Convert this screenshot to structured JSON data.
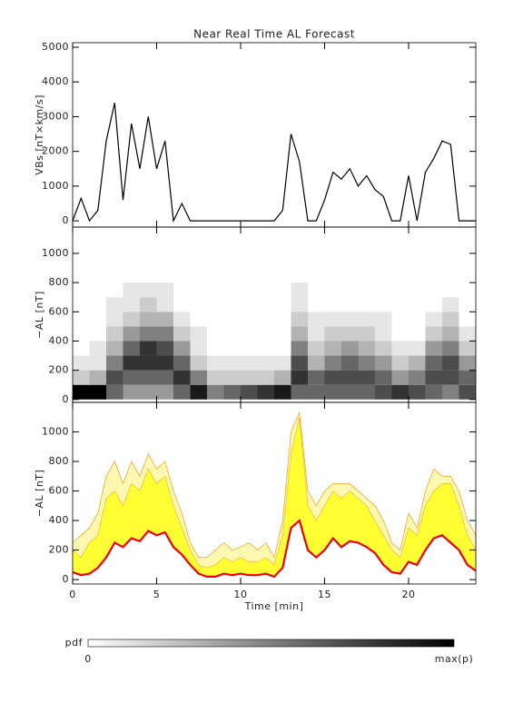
{
  "chart_data": [
    {
      "type": "line",
      "title": "Near Real Time AL Forecast",
      "ylabel": "VBs [nT×km/s]",
      "color": "#000000",
      "x": [
        0,
        0.5,
        1,
        1.5,
        2,
        2.5,
        3,
        3.5,
        4,
        4.5,
        5,
        5.5,
        6,
        6.5,
        7,
        7.5,
        8,
        8.5,
        9,
        9.5,
        10,
        10.5,
        11,
        11.5,
        12,
        12.5,
        13,
        13.5,
        14,
        14.5,
        15,
        15.5,
        16,
        16.5,
        17,
        17.5,
        18,
        18.5,
        19,
        19.5,
        20,
        20.5,
        21,
        21.5,
        22,
        22.5,
        23,
        23.5,
        24
      ],
      "values": [
        0,
        650,
        0,
        300,
        2300,
        3400,
        600,
        2800,
        1500,
        3000,
        1500,
        2300,
        0,
        500,
        0,
        0,
        0,
        0,
        0,
        0,
        0,
        0,
        0,
        0,
        0,
        300,
        2500,
        1700,
        0,
        0,
        600,
        1400,
        1200,
        1500,
        1000,
        1300,
        900,
        700,
        0,
        0,
        1300,
        0,
        1400,
        1800,
        2300,
        2200,
        0,
        0,
        0
      ],
      "xlim": [
        0,
        24
      ],
      "xticks": [
        0,
        5,
        10,
        15,
        20
      ],
      "ylim": [
        -180,
        5130
      ],
      "yticks": [
        0,
        1000,
        2000,
        3000,
        4000,
        5000
      ]
    },
    {
      "type": "heatmap",
      "ylabel": "−AL [nT]",
      "x_bins": [
        0,
        1,
        2,
        3,
        4,
        5,
        6,
        7,
        8,
        9,
        10,
        11,
        12,
        13,
        14,
        15,
        16,
        17,
        18,
        19,
        20,
        21,
        22,
        23,
        24
      ],
      "y_bins": [
        0,
        100,
        200,
        300,
        400,
        500,
        600,
        700,
        800
      ],
      "pdf": [
        [
          1,
          0.2,
          0.1,
          0,
          0,
          0,
          0,
          0
        ],
        [
          1,
          0.3,
          0.1,
          0.1,
          0,
          0,
          0,
          0
        ],
        [
          0.6,
          0.7,
          0.5,
          0.3,
          0.2,
          0.1,
          0.1,
          0
        ],
        [
          0.4,
          0.6,
          0.8,
          0.6,
          0.4,
          0.2,
          0.1,
          0.1
        ],
        [
          0.4,
          0.6,
          0.8,
          0.8,
          0.5,
          0.3,
          0.2,
          0.1
        ],
        [
          0.4,
          0.6,
          0.8,
          0.7,
          0.5,
          0.3,
          0.1,
          0.1
        ],
        [
          0.6,
          0.8,
          0.6,
          0.4,
          0.2,
          0.1,
          0,
          0
        ],
        [
          0.9,
          0.5,
          0.2,
          0.1,
          0.1,
          0,
          0,
          0
        ],
        [
          0.5,
          0.2,
          0.1,
          0,
          0,
          0,
          0,
          0
        ],
        [
          0.6,
          0.2,
          0.1,
          0,
          0,
          0,
          0,
          0
        ],
        [
          0.7,
          0.2,
          0.1,
          0,
          0,
          0,
          0,
          0
        ],
        [
          0.8,
          0.2,
          0.1,
          0,
          0,
          0,
          0,
          0
        ],
        [
          0.9,
          0.3,
          0.1,
          0,
          0,
          0,
          0,
          0
        ],
        [
          0.6,
          0.8,
          0.7,
          0.5,
          0.3,
          0.2,
          0.1,
          0.1
        ],
        [
          0.6,
          0.6,
          0.3,
          0.2,
          0.1,
          0.1,
          0,
          0
        ],
        [
          0.6,
          0.7,
          0.5,
          0.3,
          0.2,
          0.1,
          0,
          0
        ],
        [
          0.6,
          0.7,
          0.6,
          0.4,
          0.2,
          0.1,
          0,
          0
        ],
        [
          0.6,
          0.7,
          0.5,
          0.3,
          0.2,
          0.1,
          0,
          0
        ],
        [
          0.7,
          0.6,
          0.4,
          0.2,
          0.1,
          0.1,
          0,
          0
        ],
        [
          0.8,
          0.4,
          0.2,
          0.1,
          0,
          0,
          0,
          0
        ],
        [
          0.7,
          0.5,
          0.3,
          0.1,
          0,
          0,
          0,
          0
        ],
        [
          0.6,
          0.7,
          0.6,
          0.4,
          0.2,
          0.1,
          0,
          0
        ],
        [
          0.5,
          0.7,
          0.7,
          0.5,
          0.3,
          0.2,
          0.1,
          0
        ],
        [
          0.7,
          0.6,
          0.4,
          0.2,
          0.1,
          0,
          0,
          0
        ]
      ],
      "xlim": [
        0,
        24
      ],
      "xticks": [
        0,
        5,
        10,
        15,
        20
      ],
      "ylim": [
        -20,
        1180
      ],
      "yticks": [
        0,
        200,
        400,
        600,
        800,
        1000
      ],
      "colorbar": {
        "label": "pdf",
        "min_label": "0",
        "max_label": "max(p)"
      }
    },
    {
      "type": "band",
      "ylabel": "−AL [nT]",
      "xlabel": "Time [min]",
      "x": [
        0,
        0.5,
        1,
        1.5,
        2,
        2.5,
        3,
        3.5,
        4,
        4.5,
        5,
        5.5,
        6,
        6.5,
        7,
        7.5,
        8,
        8.5,
        9,
        9.5,
        10,
        10.5,
        11,
        11.5,
        12,
        12.5,
        13,
        13.5,
        14,
        14.5,
        15,
        15.5,
        16,
        16.5,
        17,
        17.5,
        18,
        18.5,
        19,
        19.5,
        20,
        20.5,
        21,
        21.5,
        22,
        22.5,
        23,
        23.5,
        24
      ],
      "series": [
        {
          "color": "#ee0000",
          "values": [
            50,
            30,
            40,
            80,
            150,
            250,
            220,
            280,
            260,
            330,
            300,
            320,
            220,
            170,
            100,
            40,
            20,
            20,
            40,
            30,
            40,
            30,
            30,
            40,
            20,
            80,
            350,
            400,
            200,
            150,
            200,
            280,
            220,
            260,
            250,
            220,
            180,
            100,
            50,
            40,
            120,
            100,
            200,
            280,
            300,
            250,
            200,
            100,
            60
          ]
        },
        {
          "color": "#ffff33",
          "values": [
            200,
            150,
            250,
            300,
            550,
            600,
            500,
            650,
            600,
            750,
            650,
            700,
            500,
            350,
            200,
            100,
            80,
            100,
            150,
            120,
            150,
            120,
            120,
            150,
            100,
            300,
            850,
            1100,
            500,
            400,
            500,
            600,
            550,
            600,
            550,
            500,
            400,
            300,
            200,
            150,
            350,
            300,
            500,
            600,
            650,
            650,
            500,
            300,
            200
          ]
        },
        {
          "color": "#f0a830",
          "values": [
            250,
            300,
            350,
            450,
            700,
            800,
            650,
            800,
            700,
            850,
            750,
            800,
            600,
            450,
            250,
            150,
            150,
            200,
            250,
            200,
            220,
            250,
            200,
            250,
            150,
            400,
            1000,
            1130,
            600,
            500,
            600,
            650,
            650,
            650,
            600,
            550,
            500,
            400,
            250,
            200,
            450,
            350,
            600,
            750,
            700,
            700,
            600,
            400,
            300
          ]
        }
      ],
      "xlim": [
        0,
        24
      ],
      "xticks": [
        0,
        5,
        10,
        15,
        20
      ],
      "ylim": [
        -30,
        1200
      ],
      "yticks": [
        0,
        200,
        400,
        600,
        800,
        1000
      ]
    }
  ]
}
